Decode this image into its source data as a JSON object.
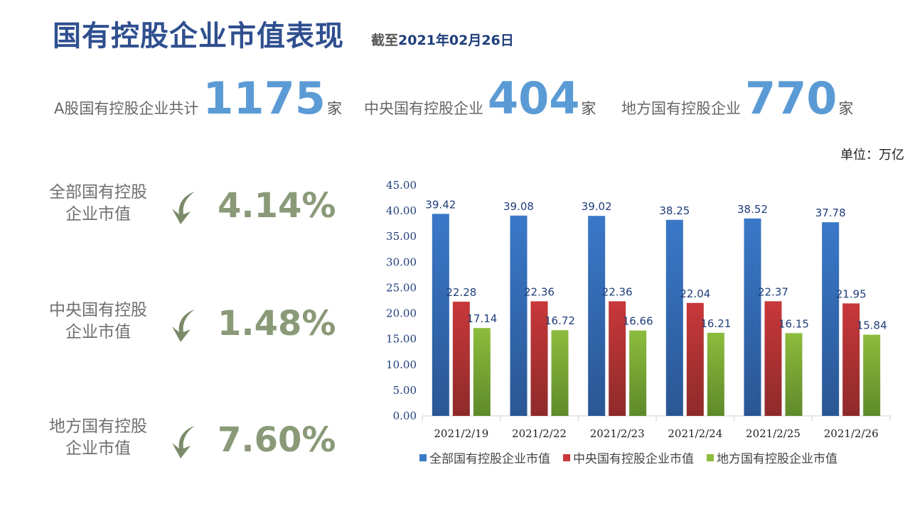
{
  "header": {
    "title": "国有控股企业市值表现",
    "asof_prefix": "截至",
    "asof_date": "2021年02月26日"
  },
  "stats": [
    {
      "label": "A股国有控股企业共计",
      "value": "1175",
      "unit": "家"
    },
    {
      "label": "中央国有控股企业",
      "value": "404",
      "unit": "家"
    },
    {
      "label": "地方国有控股企业",
      "value": "770",
      "unit": "家"
    }
  ],
  "unit_note": "单位：万亿",
  "changes": [
    {
      "label_line1": "全部国有控股",
      "label_line2": "企业市值",
      "value": "4.14%",
      "direction": "down"
    },
    {
      "label_line1": "中央国有控股",
      "label_line2": "企业市值",
      "value": "1.48%",
      "direction": "down"
    },
    {
      "label_line1": "地方国有控股",
      "label_line2": "企业市值",
      "value": "7.60%",
      "direction": "down"
    }
  ],
  "colors": {
    "title": "#2f4f8f",
    "accent_number": "#5b9bd5",
    "change_text": "#8a9a78",
    "arrow": "#7b8b6a"
  },
  "chart_data": {
    "type": "bar",
    "categories": [
      "2021/2/19",
      "2021/2/22",
      "2021/2/23",
      "2021/2/24",
      "2021/2/25",
      "2021/2/26"
    ],
    "series": [
      {
        "name": "全部国有控股企业市值",
        "color": "#3a78c8",
        "values": [
          39.42,
          39.08,
          39.02,
          38.25,
          38.52,
          37.78
        ]
      },
      {
        "name": "中央国有控股企业市值",
        "color": "#c8383a",
        "values": [
          22.28,
          22.36,
          22.36,
          22.04,
          22.37,
          21.95
        ]
      },
      {
        "name": "地方国有控股企业市值",
        "color": "#8cbc3c",
        "values": [
          17.14,
          16.72,
          16.66,
          16.21,
          16.15,
          15.84
        ]
      }
    ],
    "yticks": [
      "0.00",
      "5.00",
      "10.00",
      "15.00",
      "20.00",
      "25.00",
      "30.00",
      "35.00",
      "40.00",
      "45.00"
    ],
    "ylim": [
      0,
      45
    ],
    "grid": false,
    "legend": "bottom"
  }
}
